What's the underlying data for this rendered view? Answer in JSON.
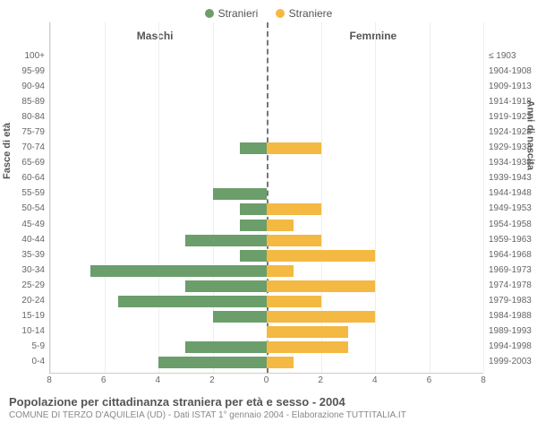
{
  "legend": {
    "male_label": "Stranieri",
    "female_label": "Straniere"
  },
  "columns": {
    "male": "Maschi",
    "female": "Femmine"
  },
  "axis_titles": {
    "left": "Fasce di età",
    "right": "Anni di nascita"
  },
  "caption": {
    "title": "Popolazione per cittadinanza straniera per età e sesso - 2004",
    "sub": "COMUNE DI TERZO D'AQUILEIA (UD) - Dati ISTAT 1° gennaio 2004 - Elaborazione TUTTITALIA.IT"
  },
  "chart": {
    "colors": {
      "male": "#6b9e6b",
      "female": "#f4b942",
      "grid": "#eeeeee",
      "center": "#777777"
    },
    "x_max": 8,
    "x_ticks": [
      8,
      6,
      4,
      2,
      0,
      2,
      4,
      6,
      8
    ],
    "rows": [
      {
        "age": "100+",
        "birth": "≤ 1903",
        "m": 0,
        "f": 0
      },
      {
        "age": "95-99",
        "birth": "1904-1908",
        "m": 0,
        "f": 0
      },
      {
        "age": "90-94",
        "birth": "1909-1913",
        "m": 0,
        "f": 0
      },
      {
        "age": "85-89",
        "birth": "1914-1918",
        "m": 0,
        "f": 0
      },
      {
        "age": "80-84",
        "birth": "1919-1923",
        "m": 0,
        "f": 0
      },
      {
        "age": "75-79",
        "birth": "1924-1928",
        "m": 0,
        "f": 0
      },
      {
        "age": "70-74",
        "birth": "1929-1933",
        "m": 1,
        "f": 2
      },
      {
        "age": "65-69",
        "birth": "1934-1938",
        "m": 0,
        "f": 0
      },
      {
        "age": "60-64",
        "birth": "1939-1943",
        "m": 0,
        "f": 0
      },
      {
        "age": "55-59",
        "birth": "1944-1948",
        "m": 2,
        "f": 0
      },
      {
        "age": "50-54",
        "birth": "1949-1953",
        "m": 1,
        "f": 2
      },
      {
        "age": "45-49",
        "birth": "1954-1958",
        "m": 1,
        "f": 1
      },
      {
        "age": "40-44",
        "birth": "1959-1963",
        "m": 3,
        "f": 2
      },
      {
        "age": "35-39",
        "birth": "1964-1968",
        "m": 1,
        "f": 4
      },
      {
        "age": "30-34",
        "birth": "1969-1973",
        "m": 6.5,
        "f": 1
      },
      {
        "age": "25-29",
        "birth": "1974-1978",
        "m": 3,
        "f": 4
      },
      {
        "age": "20-24",
        "birth": "1979-1983",
        "m": 5.5,
        "f": 2
      },
      {
        "age": "15-19",
        "birth": "1984-1988",
        "m": 2,
        "f": 4
      },
      {
        "age": "10-14",
        "birth": "1989-1993",
        "m": 0,
        "f": 3
      },
      {
        "age": "5-9",
        "birth": "1994-1998",
        "m": 3,
        "f": 3
      },
      {
        "age": "0-4",
        "birth": "1999-2003",
        "m": 4,
        "f": 1
      }
    ]
  }
}
